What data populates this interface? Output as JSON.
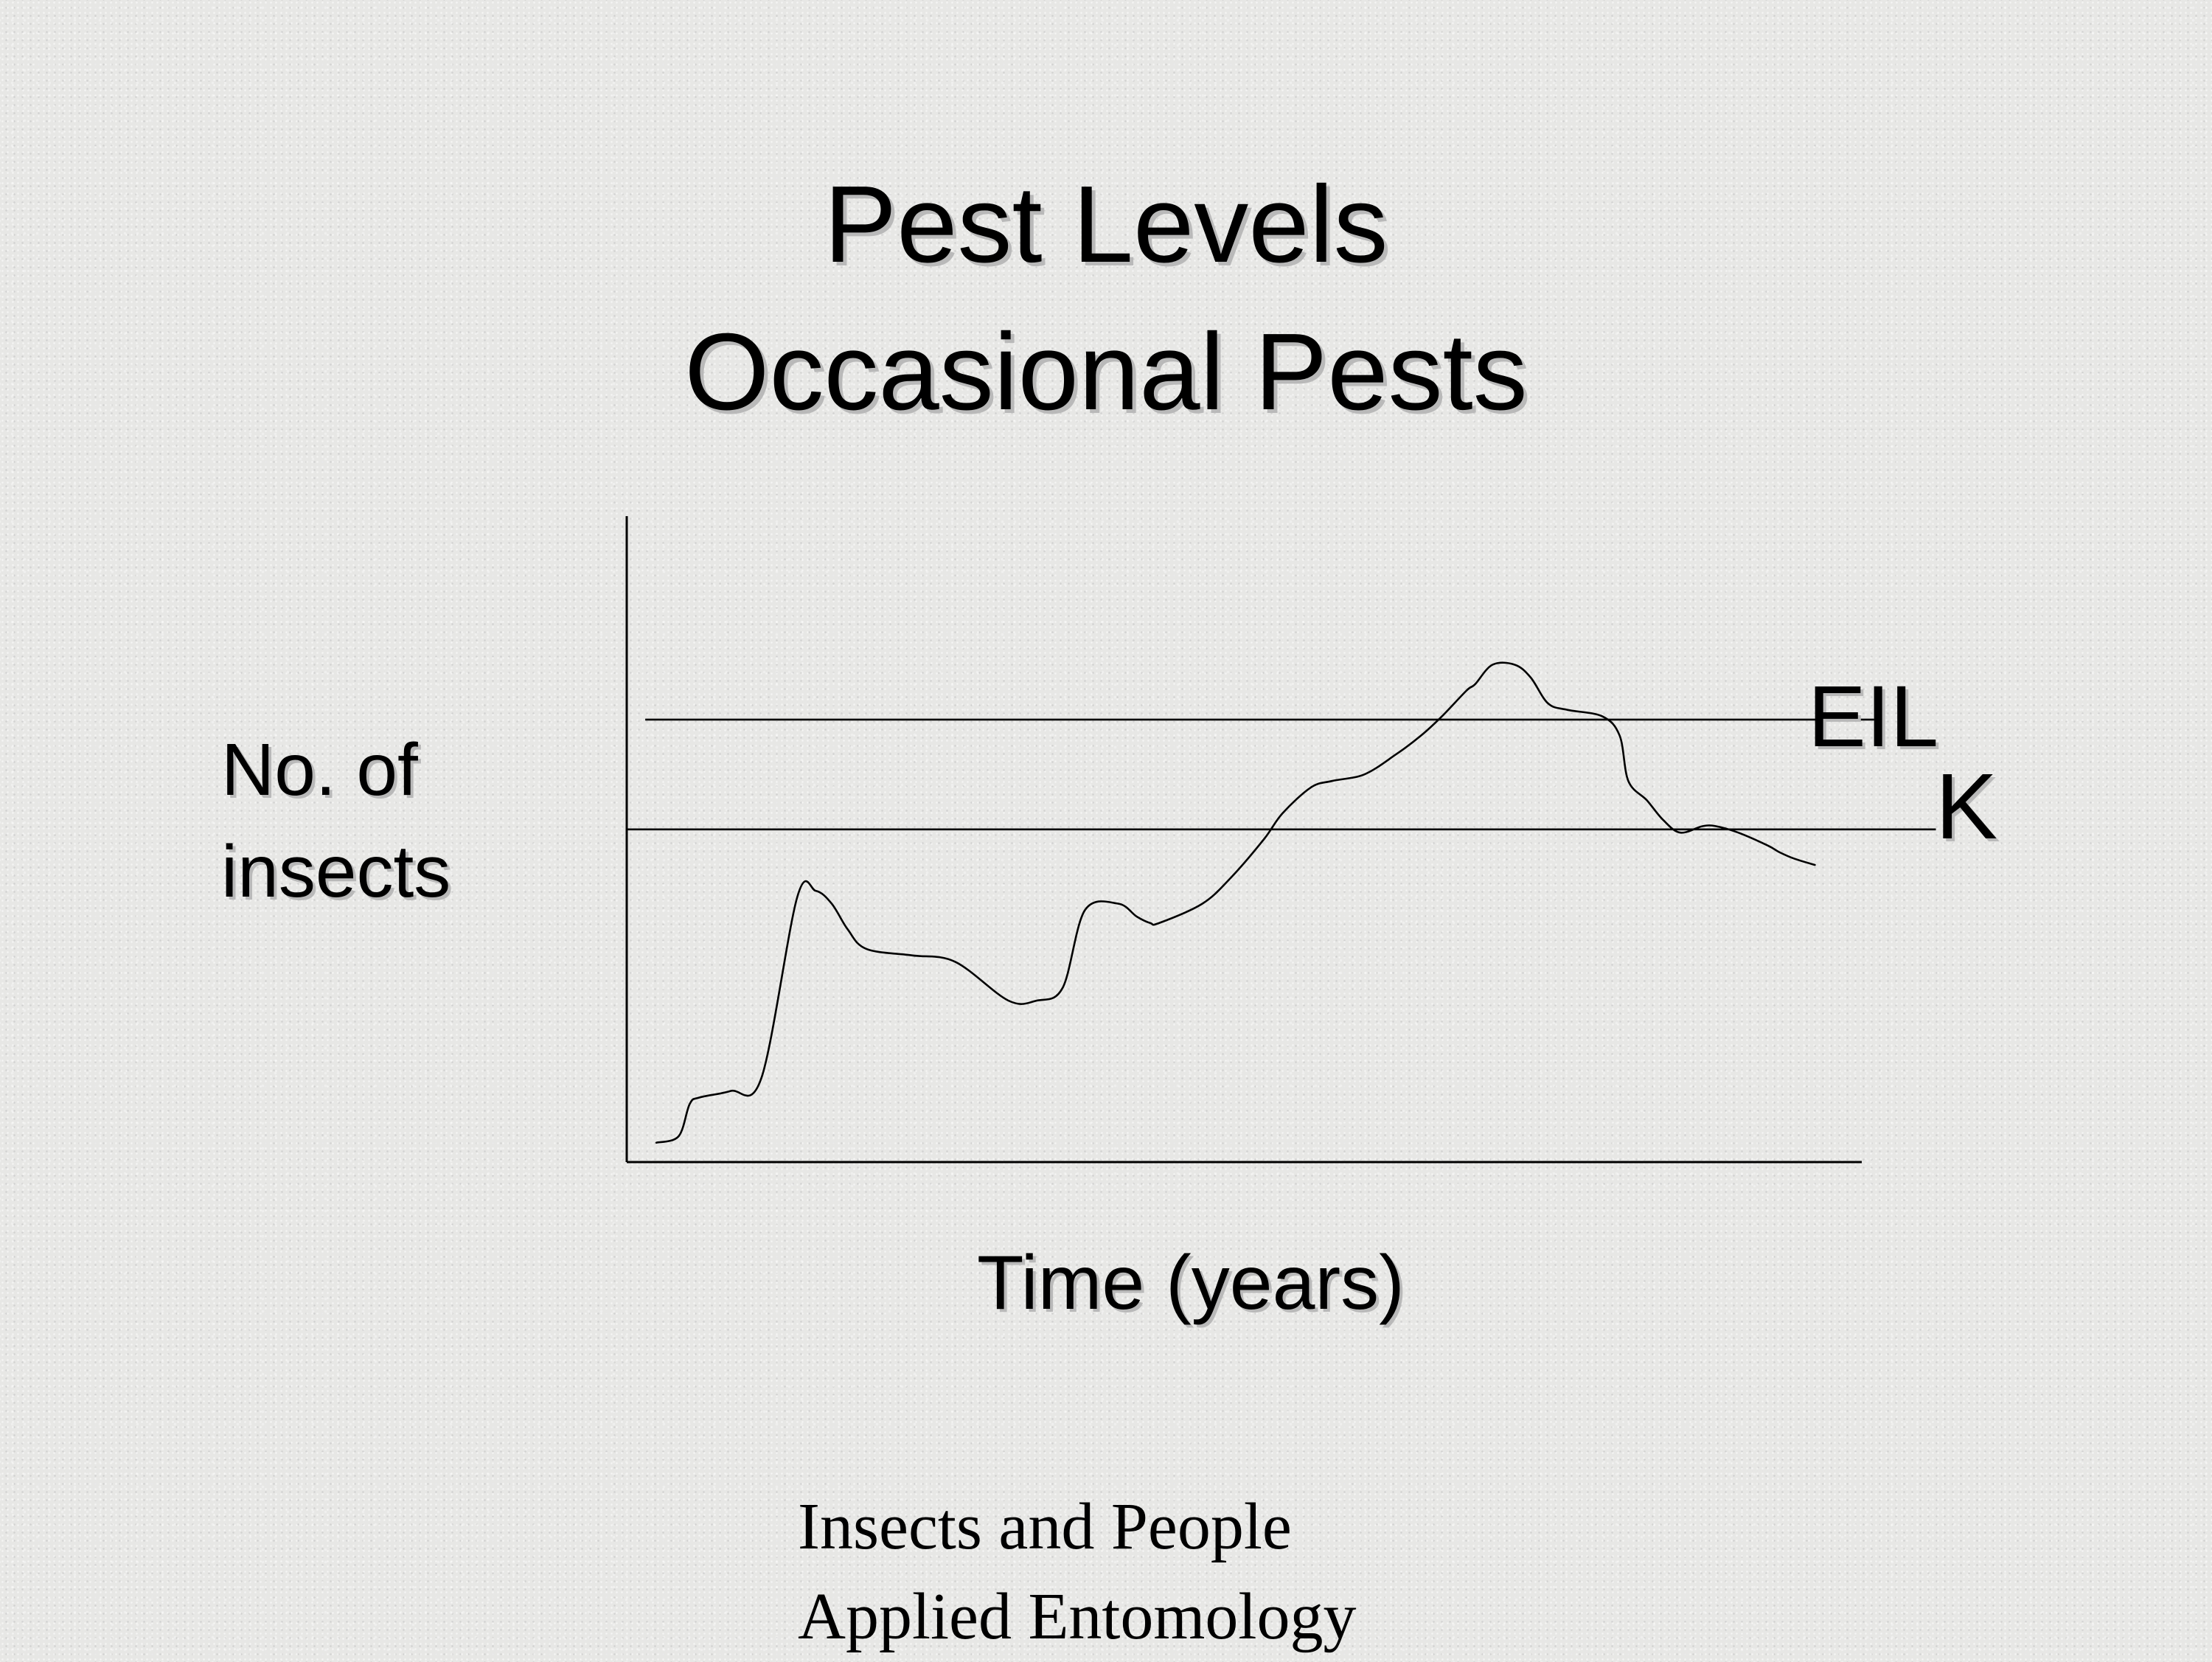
{
  "slide": {
    "title_line1": "Pest Levels",
    "title_line2": "Occasional Pests",
    "footer_line1": "Insects and People",
    "footer_line2": "Applied Entomology"
  },
  "chart_data": {
    "type": "line",
    "title": "Pest Levels Occasional Pests",
    "xlabel": "Time (years)",
    "ylabel_line1": "No. of",
    "ylabel_line2": "insects",
    "xlim": [
      0,
      100
    ],
    "ylim": [
      0,
      100
    ],
    "grid": false,
    "axis_ticks": false,
    "reference_lines": [
      {
        "label": "EIL",
        "y": 68.5,
        "x_start": 1.5,
        "x_end": 101
      },
      {
        "label": "K",
        "y": 51.5,
        "x_start": 0,
        "x_end": 106
      }
    ],
    "series": [
      {
        "x": [
          2.4,
          4.2,
          5.1,
          5.9,
          8.4,
          10.9,
          13.8,
          15.3,
          16.6,
          17.9,
          19.4,
          23.1,
          26.6,
          30.9,
          33.2,
          35.3,
          37.1,
          39.8,
          41.3,
          42.4,
          43.1,
          46.6,
          48.9,
          51.6,
          53.1,
          55.4,
          57.1,
          59.7,
          62.2,
          64.3,
          66.0,
          68.0,
          68.7,
          70.1,
          71.9,
          73.2,
          74.6,
          76.2,
          79.0,
          80.4,
          81.1,
          82.6,
          83.9,
          85.3,
          87.1,
          88.2,
          90.0,
          92.4,
          93.3,
          94.5,
          96.2
        ],
        "y": [
          3,
          4,
          9,
          10,
          11,
          13,
          41,
          42,
          40,
          36,
          33,
          32,
          31,
          25,
          25,
          27,
          39,
          40,
          38,
          37,
          37,
          40,
          44,
          50,
          54,
          58,
          59,
          60,
          63,
          66,
          69,
          73,
          74,
          77,
          77,
          75,
          71,
          70,
          69,
          66,
          59,
          56,
          53,
          51,
          52,
          52,
          51,
          49,
          48,
          47,
          46
        ]
      }
    ]
  }
}
